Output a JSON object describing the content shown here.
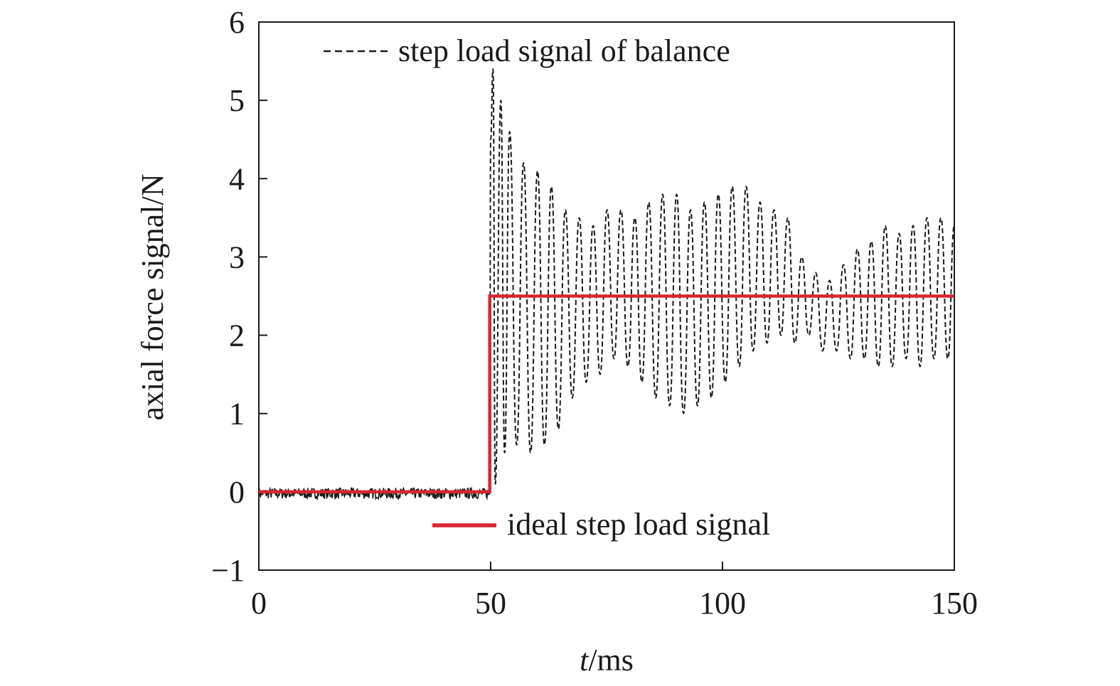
{
  "chart_data": {
    "type": "line",
    "xlabel": {
      "italic": "t",
      "rest": "/ms"
    },
    "ylabel": "axial force signal/N",
    "xlim": [
      0,
      150
    ],
    "ylim": [
      -1,
      6
    ],
    "xticks": [
      0,
      50,
      100,
      150
    ],
    "yticks": [
      -1,
      0,
      1,
      2,
      3,
      4,
      5,
      6
    ],
    "ytick_labels": [
      "−1",
      "0",
      "1",
      "2",
      "3",
      "4",
      "5",
      "6"
    ],
    "grid": false,
    "series": [
      {
        "name": "step load signal of balance",
        "style": "dashed",
        "color": "#1a1a1a",
        "pre_step": {
          "x_range": [
            0,
            49.8
          ],
          "level": -0.02,
          "noise_band": 0.07
        },
        "x": [
          49.8,
          50.0,
          50.5,
          51.0,
          52.2,
          53.0,
          54.1,
          55.6,
          57.1,
          58.6,
          60.1,
          61.6,
          63.1,
          64.6,
          66.1,
          67.6,
          69.1,
          70.6,
          72.1,
          73.6,
          75.1,
          76.6,
          78.1,
          79.6,
          81.1,
          82.6,
          84.1,
          85.6,
          87.1,
          88.6,
          90.1,
          91.6,
          93.1,
          94.6,
          96.1,
          97.6,
          99.1,
          100.6,
          102.1,
          103.6,
          105.1,
          106.6,
          108.1,
          109.6,
          111.1,
          112.6,
          114.1,
          115.6,
          117.1,
          118.6,
          120.1,
          121.6,
          123.1,
          124.6,
          126.1,
          127.6,
          129.1,
          130.6,
          132.1,
          133.6,
          135.1,
          136.6,
          138.1,
          139.6,
          141.1,
          142.6,
          144.1,
          145.6,
          147.1,
          148.6,
          150.0
        ],
        "y": [
          0.0,
          4.5,
          5.4,
          0.1,
          5.0,
          0.5,
          4.6,
          0.6,
          4.2,
          0.5,
          4.1,
          0.6,
          3.9,
          0.8,
          3.6,
          1.2,
          3.5,
          1.4,
          3.4,
          1.5,
          3.6,
          1.7,
          3.6,
          1.6,
          3.5,
          1.4,
          3.7,
          1.2,
          3.8,
          1.1,
          3.8,
          1.0,
          3.6,
          1.1,
          3.7,
          1.2,
          3.8,
          1.4,
          3.9,
          1.6,
          3.9,
          1.8,
          3.7,
          1.9,
          3.6,
          2.0,
          3.5,
          1.9,
          3.0,
          2.0,
          2.8,
          1.8,
          2.7,
          1.8,
          2.9,
          1.7,
          3.1,
          1.7,
          3.2,
          1.6,
          3.4,
          1.6,
          3.3,
          1.7,
          3.4,
          1.6,
          3.5,
          1.7,
          3.5,
          1.7,
          3.4
        ]
      },
      {
        "name": "ideal step load signal",
        "style": "solid",
        "color": "#d8262e",
        "x": [
          0,
          49.8,
          49.8,
          150
        ],
        "y": [
          0,
          0,
          2.5,
          2.5
        ]
      }
    ],
    "legend": [
      {
        "label": "step load signal of balance",
        "placement": "top-center"
      },
      {
        "label": "ideal step load signal",
        "placement": "bottom-center"
      }
    ]
  }
}
